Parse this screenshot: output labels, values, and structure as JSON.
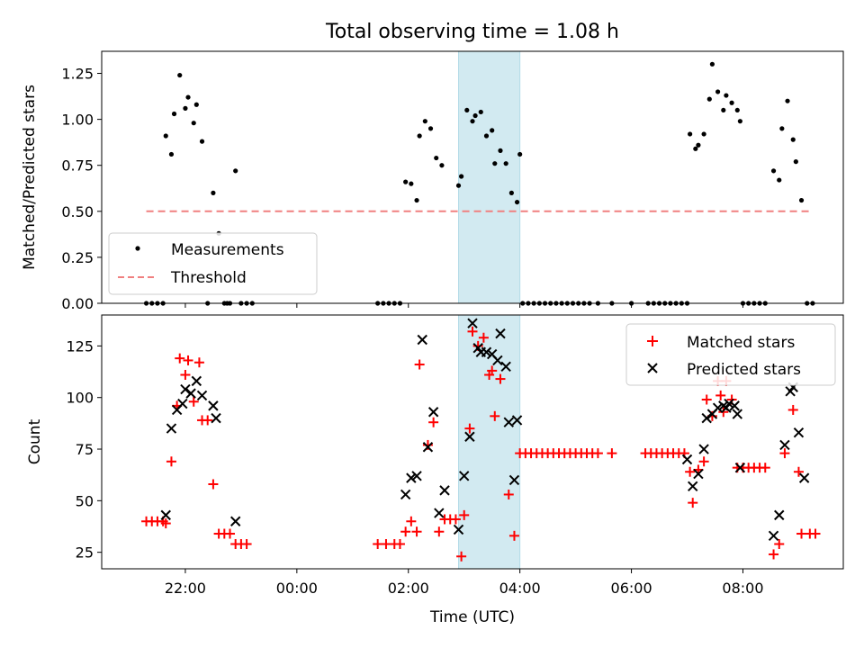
{
  "figure_title": "Total observing time = 1.08 h",
  "x_ticks": [
    "22:00",
    "00:00",
    "02:00",
    "04:00",
    "06:00",
    "08:00"
  ],
  "chart_data": [
    {
      "type": "scatter",
      "ylabel": "Matched/Predicted stars",
      "ylim": [
        0,
        1.37
      ],
      "yticks": [
        "0.00",
        "0.25",
        "0.50",
        "0.75",
        "1.00",
        "1.25"
      ],
      "xlim_hours": [
        20.5,
        33.8
      ],
      "legend_position": "lower-left",
      "highlight_span_hours": [
        26.9,
        28.0
      ],
      "highlight_color": "#add8e6",
      "threshold": {
        "name": "Threshold",
        "value": 0.5,
        "x_range_hours": [
          21.3,
          33.2
        ],
        "color": "#f08080",
        "style": "dashed"
      },
      "series": [
        {
          "name": "Measurements",
          "marker": "dot",
          "color": "#000000",
          "points": [
            [
              21.3,
              0
            ],
            [
              21.4,
              0
            ],
            [
              21.5,
              0
            ],
            [
              21.6,
              0
            ],
            [
              21.65,
              0.91
            ],
            [
              21.75,
              0.81
            ],
            [
              21.8,
              1.03
            ],
            [
              21.9,
              1.24
            ],
            [
              22.0,
              1.06
            ],
            [
              22.05,
              1.12
            ],
            [
              22.15,
              0.98
            ],
            [
              22.2,
              1.08
            ],
            [
              22.3,
              0.88
            ],
            [
              22.4,
              0
            ],
            [
              22.5,
              0.6
            ],
            [
              22.6,
              0.38
            ],
            [
              22.7,
              0
            ],
            [
              22.75,
              0
            ],
            [
              22.8,
              0
            ],
            [
              22.9,
              0.72
            ],
            [
              23.0,
              0
            ],
            [
              23.1,
              0
            ],
            [
              23.2,
              0
            ],
            [
              25.45,
              0
            ],
            [
              25.55,
              0
            ],
            [
              25.65,
              0
            ],
            [
              25.75,
              0
            ],
            [
              25.85,
              0
            ],
            [
              25.95,
              0.66
            ],
            [
              26.05,
              0.65
            ],
            [
              26.15,
              0.56
            ],
            [
              26.2,
              0.91
            ],
            [
              26.3,
              0.99
            ],
            [
              26.4,
              0.95
            ],
            [
              26.5,
              0.79
            ],
            [
              26.6,
              0.75
            ],
            [
              26.9,
              0.64
            ],
            [
              26.95,
              0.69
            ],
            [
              27.05,
              1.05
            ],
            [
              27.15,
              0.99
            ],
            [
              27.2,
              1.02
            ],
            [
              27.3,
              1.04
            ],
            [
              27.4,
              0.91
            ],
            [
              27.5,
              0.94
            ],
            [
              27.55,
              0.76
            ],
            [
              27.65,
              0.83
            ],
            [
              27.75,
              0.76
            ],
            [
              27.85,
              0.6
            ],
            [
              27.95,
              0.55
            ],
            [
              28.0,
              0.81
            ],
            [
              28.05,
              0
            ],
            [
              28.15,
              0
            ],
            [
              28.25,
              0
            ],
            [
              28.35,
              0
            ],
            [
              28.45,
              0
            ],
            [
              28.55,
              0
            ],
            [
              28.65,
              0
            ],
            [
              28.75,
              0
            ],
            [
              28.85,
              0
            ],
            [
              28.95,
              0
            ],
            [
              29.05,
              0
            ],
            [
              29.15,
              0
            ],
            [
              29.25,
              0
            ],
            [
              29.4,
              0
            ],
            [
              29.65,
              0
            ],
            [
              30.0,
              0
            ],
            [
              30.3,
              0
            ],
            [
              30.4,
              0
            ],
            [
              30.5,
              0
            ],
            [
              30.6,
              0
            ],
            [
              30.7,
              0
            ],
            [
              30.8,
              0
            ],
            [
              30.9,
              0
            ],
            [
              31.0,
              0
            ],
            [
              31.05,
              0.92
            ],
            [
              31.15,
              0.84
            ],
            [
              31.2,
              0.86
            ],
            [
              31.3,
              0.92
            ],
            [
              31.4,
              1.11
            ],
            [
              31.45,
              1.3
            ],
            [
              31.55,
              1.15
            ],
            [
              31.65,
              1.05
            ],
            [
              31.7,
              1.13
            ],
            [
              31.8,
              1.09
            ],
            [
              31.9,
              1.05
            ],
            [
              31.95,
              0.99
            ],
            [
              32.0,
              0
            ],
            [
              32.1,
              0
            ],
            [
              32.2,
              0
            ],
            [
              32.3,
              0
            ],
            [
              32.4,
              0
            ],
            [
              32.55,
              0.72
            ],
            [
              32.65,
              0.67
            ],
            [
              32.7,
              0.95
            ],
            [
              32.8,
              1.1
            ],
            [
              32.9,
              0.89
            ],
            [
              32.95,
              0.77
            ],
            [
              33.05,
              0.56
            ],
            [
              33.15,
              0
            ],
            [
              33.25,
              0
            ]
          ]
        }
      ]
    },
    {
      "type": "scatter",
      "xlabel": "Time (UTC)",
      "ylabel": "Count",
      "ylim": [
        17,
        140
      ],
      "yticks": [
        "25",
        "50",
        "75",
        "100",
        "125"
      ],
      "xlim_hours": [
        20.5,
        33.8
      ],
      "legend_position": "upper-right",
      "highlight_span_hours": [
        26.9,
        28.0
      ],
      "highlight_color": "#add8e6",
      "series": [
        {
          "name": "Matched stars",
          "marker": "plus",
          "color": "#ff0000",
          "points": [
            [
              21.3,
              40
            ],
            [
              21.4,
              40
            ],
            [
              21.5,
              40
            ],
            [
              21.6,
              40
            ],
            [
              21.65,
              39
            ],
            [
              21.75,
              69
            ],
            [
              21.85,
              96
            ],
            [
              21.9,
              119
            ],
            [
              22.0,
              111
            ],
            [
              22.05,
              118
            ],
            [
              22.15,
              98
            ],
            [
              22.25,
              117
            ],
            [
              22.3,
              89
            ],
            [
              22.4,
              89
            ],
            [
              22.5,
              58
            ],
            [
              22.6,
              34
            ],
            [
              22.7,
              34
            ],
            [
              22.8,
              34
            ],
            [
              22.9,
              29
            ],
            [
              23.0,
              29
            ],
            [
              23.1,
              29
            ],
            [
              25.45,
              29
            ],
            [
              25.6,
              29
            ],
            [
              25.75,
              29
            ],
            [
              25.85,
              29
            ],
            [
              25.95,
              35
            ],
            [
              26.05,
              40
            ],
            [
              26.15,
              35
            ],
            [
              26.2,
              116
            ],
            [
              26.35,
              77
            ],
            [
              26.45,
              88
            ],
            [
              26.55,
              35
            ],
            [
              26.65,
              41
            ],
            [
              26.75,
              41
            ],
            [
              26.85,
              41
            ],
            [
              26.95,
              23
            ],
            [
              27.0,
              43
            ],
            [
              27.1,
              85
            ],
            [
              27.15,
              132
            ],
            [
              27.25,
              125
            ],
            [
              27.35,
              129
            ],
            [
              27.45,
              111
            ],
            [
              27.5,
              113
            ],
            [
              27.55,
              91
            ],
            [
              27.65,
              109
            ],
            [
              27.8,
              53
            ],
            [
              27.9,
              33
            ],
            [
              28.0,
              73
            ],
            [
              28.1,
              73
            ],
            [
              28.2,
              73
            ],
            [
              28.3,
              73
            ],
            [
              28.4,
              73
            ],
            [
              28.5,
              73
            ],
            [
              28.6,
              73
            ],
            [
              28.7,
              73
            ],
            [
              28.8,
              73
            ],
            [
              28.9,
              73
            ],
            [
              29.0,
              73
            ],
            [
              29.1,
              73
            ],
            [
              29.2,
              73
            ],
            [
              29.3,
              73
            ],
            [
              29.4,
              73
            ],
            [
              29.65,
              73
            ],
            [
              30.25,
              73
            ],
            [
              30.35,
              73
            ],
            [
              30.45,
              73
            ],
            [
              30.55,
              73
            ],
            [
              30.65,
              73
            ],
            [
              30.75,
              73
            ],
            [
              30.85,
              73
            ],
            [
              30.95,
              73
            ],
            [
              31.05,
              64
            ],
            [
              31.1,
              49
            ],
            [
              31.2,
              65
            ],
            [
              31.3,
              69
            ],
            [
              31.35,
              99
            ],
            [
              31.45,
              91
            ],
            [
              31.55,
              108
            ],
            [
              31.6,
              101
            ],
            [
              31.65,
              93
            ],
            [
              31.7,
              108
            ],
            [
              31.8,
              99
            ],
            [
              31.9,
              66
            ],
            [
              32.0,
              66
            ],
            [
              32.1,
              66
            ],
            [
              32.2,
              66
            ],
            [
              32.3,
              66
            ],
            [
              32.4,
              66
            ],
            [
              32.55,
              24
            ],
            [
              32.65,
              29
            ],
            [
              32.75,
              73
            ],
            [
              32.9,
              94
            ],
            [
              33.0,
              64
            ],
            [
              33.05,
              34
            ],
            [
              33.2,
              34
            ],
            [
              33.3,
              34
            ]
          ]
        },
        {
          "name": "Predicted stars",
          "marker": "x",
          "color": "#000000",
          "points": [
            [
              21.65,
              43
            ],
            [
              21.75,
              85
            ],
            [
              21.85,
              94
            ],
            [
              21.95,
              97
            ],
            [
              22.0,
              104
            ],
            [
              22.1,
              102
            ],
            [
              22.2,
              108
            ],
            [
              22.3,
              101
            ],
            [
              22.5,
              96
            ],
            [
              22.55,
              90
            ],
            [
              22.9,
              40
            ],
            [
              25.95,
              53
            ],
            [
              26.05,
              61
            ],
            [
              26.15,
              62
            ],
            [
              26.25,
              128
            ],
            [
              26.35,
              76
            ],
            [
              26.45,
              93
            ],
            [
              26.55,
              44
            ],
            [
              26.65,
              55
            ],
            [
              26.9,
              36
            ],
            [
              27.0,
              62
            ],
            [
              27.1,
              81
            ],
            [
              27.15,
              136
            ],
            [
              27.25,
              124
            ],
            [
              27.3,
              122
            ],
            [
              27.4,
              122
            ],
            [
              27.5,
              121
            ],
            [
              27.6,
              118
            ],
            [
              27.65,
              131
            ],
            [
              27.75,
              115
            ],
            [
              27.8,
              88
            ],
            [
              27.9,
              60
            ],
            [
              27.95,
              89
            ],
            [
              31.0,
              70
            ],
            [
              31.1,
              57
            ],
            [
              31.2,
              63
            ],
            [
              31.3,
              75
            ],
            [
              31.35,
              90
            ],
            [
              31.45,
              92
            ],
            [
              31.55,
              95
            ],
            [
              31.65,
              96
            ],
            [
              31.7,
              95
            ],
            [
              31.75,
              97
            ],
            [
              31.85,
              96
            ],
            [
              31.9,
              92
            ],
            [
              31.95,
              66
            ],
            [
              32.55,
              33
            ],
            [
              32.65,
              43
            ],
            [
              32.75,
              77
            ],
            [
              32.85,
              103
            ],
            [
              32.9,
              105
            ],
            [
              33.0,
              83
            ],
            [
              33.1,
              61
            ]
          ]
        }
      ]
    }
  ]
}
